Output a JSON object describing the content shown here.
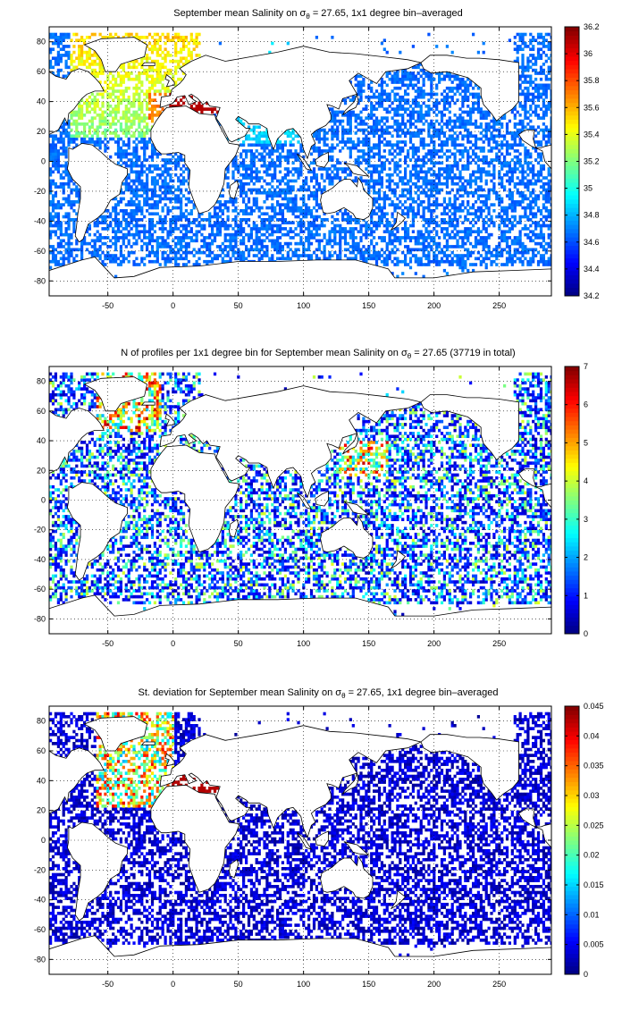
{
  "chart_data": [
    {
      "type": "heatmap",
      "title": "September mean Salinity on σθ = 27.65, 1x1 degree bin–averaged",
      "title_parts": {
        "before": "September mean Salinity on σ",
        "sub": "θ",
        "after": " = 27.65, 1x1 degree bin–averaged"
      },
      "xlim": [
        -95,
        290
      ],
      "ylim": [
        -90,
        90
      ],
      "xticks": [
        -50,
        0,
        50,
        100,
        150,
        200,
        250
      ],
      "yticks": [
        -80,
        -60,
        -40,
        -20,
        0,
        20,
        40,
        60,
        80
      ],
      "grid": "dotted",
      "colormap": "jet",
      "colorbar": {
        "min": 34.2,
        "max": 36.2,
        "ticks": [
          34.2,
          34.4,
          34.6,
          34.8,
          35,
          35.2,
          35.4,
          35.6,
          35.8,
          36,
          36.2
        ]
      }
    },
    {
      "type": "heatmap",
      "title": "N of profiles per 1x1 degree bin for September mean Salinity on σθ = 27.65 (37719 in total)",
      "title_parts": {
        "before": "N of profiles per 1x1 degree bin for September mean Salinity on σ",
        "sub": "θ",
        "after": " = 27.65 (37719 in total)"
      },
      "total_profiles": 37719,
      "xlim": [
        -95,
        290
      ],
      "ylim": [
        -90,
        90
      ],
      "xticks": [
        -50,
        0,
        50,
        100,
        150,
        200,
        250
      ],
      "yticks": [
        -80,
        -60,
        -40,
        -20,
        0,
        20,
        40,
        60,
        80
      ],
      "grid": "dotted",
      "colormap": "jet",
      "colorbar": {
        "min": 0,
        "max": 7,
        "ticks": [
          0,
          1,
          2,
          3,
          4,
          5,
          6,
          7
        ]
      }
    },
    {
      "type": "heatmap",
      "title": "St. deviation for September mean Salinity on σθ = 27.65, 1x1 degree bin–averaged",
      "title_parts": {
        "before": "St. deviation for September mean Salinity on σ",
        "sub": "θ",
        "after": " = 27.65, 1x1 degree bin–averaged"
      },
      "xlim": [
        -95,
        290
      ],
      "ylim": [
        -90,
        90
      ],
      "xticks": [
        -50,
        0,
        50,
        100,
        150,
        200,
        250
      ],
      "yticks": [
        -80,
        -60,
        -40,
        -20,
        0,
        20,
        40,
        60,
        80
      ],
      "grid": "dotted",
      "colormap": "jet",
      "colorbar": {
        "min": 0,
        "max": 0.045,
        "ticks": [
          0,
          0.005,
          0.01,
          0.015,
          0.02,
          0.025,
          0.03,
          0.035,
          0.04,
          0.045
        ]
      }
    }
  ]
}
